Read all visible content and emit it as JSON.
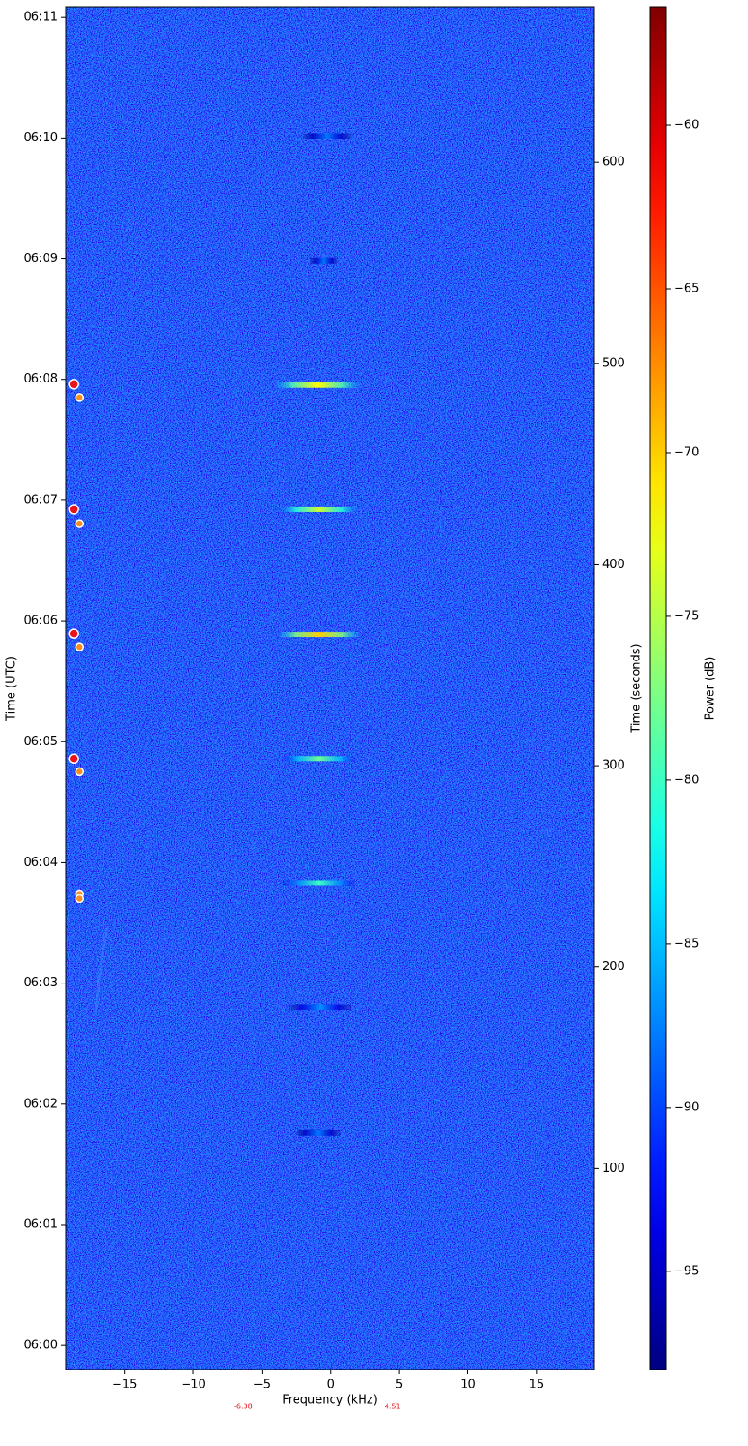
{
  "chart_data": {
    "type": "spectrogram",
    "xlabel": "Frequency (kHz)",
    "ylabel": "Time (UTC)",
    "y2label": "Time (seconds)",
    "colorbar_label": "Power (dB)",
    "colormap": "jet",
    "xlim": [
      -19.3,
      19.2
    ],
    "xticks": [
      {
        "value": -15,
        "label": "−15"
      },
      {
        "value": -10,
        "label": "−10"
      },
      {
        "value": -5,
        "label": "−5"
      },
      0,
      5,
      10,
      15
    ],
    "ylim": [
      0,
      677
    ],
    "yticks": [
      {
        "value": 12,
        "label": "06:00"
      },
      {
        "value": 72,
        "label": "06:01"
      },
      {
        "value": 132,
        "label": "06:02"
      },
      {
        "value": 192,
        "label": "06:03"
      },
      {
        "value": 252,
        "label": "06:04"
      },
      {
        "value": 312,
        "label": "06:05"
      },
      {
        "value": 372,
        "label": "06:06"
      },
      {
        "value": 432,
        "label": "06:07"
      },
      {
        "value": 492,
        "label": "06:08"
      },
      {
        "value": 552,
        "label": "06:09"
      },
      {
        "value": 612,
        "label": "06:10"
      },
      {
        "value": 672,
        "label": "06:11"
      }
    ],
    "y2lim": [
      0,
      677
    ],
    "y2ticks": [
      100,
      200,
      300,
      400,
      500,
      600
    ],
    "clim": [
      -98,
      -56.4
    ],
    "cticks": [
      {
        "value": -60,
        "label": "−60"
      },
      {
        "value": -65,
        "label": "−65"
      },
      {
        "value": -70,
        "label": "−70"
      },
      {
        "value": -75,
        "label": "−75"
      },
      {
        "value": -80,
        "label": "−80"
      },
      {
        "value": -85,
        "label": "−85"
      },
      {
        "value": -90,
        "label": "−90"
      },
      {
        "value": -95,
        "label": "−95"
      }
    ],
    "signals": {
      "time": [
        117.7,
        180,
        241.7,
        303.5,
        365.3,
        427.5,
        489.3,
        551,
        612.8
      ],
      "freq_start": [
        -2.5,
        -3,
        -3.5,
        -3.5,
        -3.7,
        -3.7,
        -4,
        -1.5,
        -2
      ],
      "freq_end": [
        0.7,
        1.5,
        1.8,
        1.8,
        2,
        2,
        2.1,
        0.5,
        1.5
      ],
      "power": [
        -88,
        -87,
        -80,
        -78,
        -70,
        -74,
        -72,
        -88,
        -88
      ]
    },
    "markers": [
      {
        "color": "#e8141a",
        "x": [
          -18.7,
          -18.7,
          -18.7,
          -18.7
        ],
        "y": [
          489.7,
          427.5,
          365.7,
          303.5
        ]
      },
      {
        "color": "#f39020",
        "x": [
          -18.3,
          -18.3,
          -18.3,
          -18.3,
          -18.3,
          -18.3
        ],
        "y": [
          483,
          420.3,
          359,
          297.2,
          236.3,
          234.1
        ]
      }
    ],
    "annotations": [
      -6.38,
      4.51
    ],
    "annotation_color": "#e8141a"
  }
}
